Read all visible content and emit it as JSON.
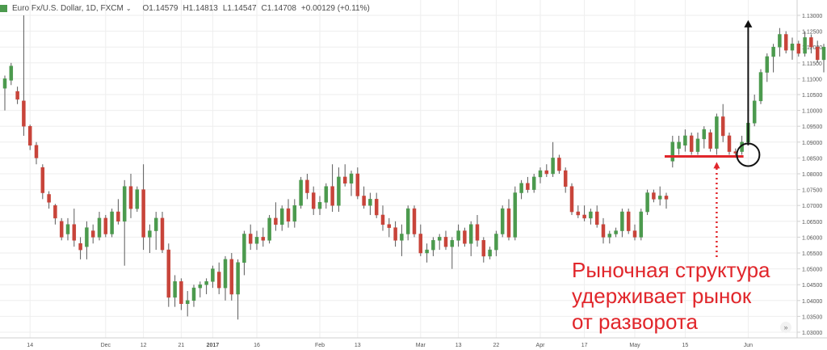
{
  "legend": {
    "symbol": "Euro Fx/U.S. Dollar, 1D, FXCM",
    "dropdown_icon": "chevron-down-icon",
    "open": "O1.14579",
    "high": "H1.14813",
    "low": "L1.14547",
    "close": "C1.14708",
    "change": "+0.00129 (+0.11%)"
  },
  "annotation": {
    "lines": [
      "Рыночная структура",
      "удерживает рынок",
      "от разворота"
    ]
  },
  "colors": {
    "up": "#4c9a4e",
    "down": "#c8443a",
    "wick": "#5a5a5a",
    "marker": "#e1262b",
    "arrow": "#111111",
    "axis_text": "#555555",
    "grid": "#eeeeee"
  },
  "chart_data": {
    "type": "candlestick",
    "y_axis": {
      "min": 1.03,
      "max": 1.13,
      "ticks": [
        "1.13000",
        "1.12500",
        "1.12000",
        "1.11500",
        "1.11000",
        "1.10500",
        "1.10000",
        "1.09500",
        "1.09000",
        "1.08500",
        "1.08000",
        "1.07500",
        "1.07000",
        "1.06500",
        "1.06000",
        "1.05500",
        "1.05000",
        "1.04500",
        "1.04000",
        "1.03500",
        "1.03000"
      ],
      "grid": true
    },
    "x_axis": {
      "ticks": [
        {
          "label": "14",
          "index": 4
        },
        {
          "label": "Dec",
          "index": 16
        },
        {
          "label": "12",
          "index": 22
        },
        {
          "label": "21",
          "index": 28
        },
        {
          "label": "2017",
          "index": 33
        },
        {
          "label": "16",
          "index": 40
        },
        {
          "label": "Feb",
          "index": 50
        },
        {
          "label": "13",
          "index": 56
        },
        {
          "label": "Mar",
          "index": 66
        },
        {
          "label": "13",
          "index": 72
        },
        {
          "label": "22",
          "index": 78
        },
        {
          "label": "Apr",
          "index": 85
        },
        {
          "label": "17",
          "index": 92
        },
        {
          "label": "May",
          "index": 100
        },
        {
          "label": "15",
          "index": 108
        },
        {
          "label": "Jun",
          "index": 118
        }
      ]
    },
    "candles": [
      {
        "o": 1.107,
        "h": 1.111,
        "l": 1.1,
        "c": 1.11
      },
      {
        "o": 1.1095,
        "h": 1.115,
        "l": 1.108,
        "c": 1.114
      },
      {
        "o": 1.106,
        "h": 1.1075,
        "l": 1.102,
        "c": 1.1035
      },
      {
        "o": 1.103,
        "h": 1.13,
        "l": 1.092,
        "c": 1.095
      },
      {
        "o": 1.095,
        "h": 1.0955,
        "l": 1.0875,
        "c": 1.089
      },
      {
        "o": 1.089,
        "h": 1.09,
        "l": 1.083,
        "c": 1.085
      },
      {
        "o": 1.082,
        "h": 1.083,
        "l": 1.072,
        "c": 1.074
      },
      {
        "o": 1.0735,
        "h": 1.0745,
        "l": 1.069,
        "c": 1.071
      },
      {
        "o": 1.07,
        "h": 1.0705,
        "l": 1.064,
        "c": 1.066
      },
      {
        "o": 1.065,
        "h": 1.066,
        "l": 1.059,
        "c": 1.06
      },
      {
        "o": 1.061,
        "h": 1.066,
        "l": 1.059,
        "c": 1.064
      },
      {
        "o": 1.064,
        "h": 1.069,
        "l": 1.057,
        "c": 1.059
      },
      {
        "o": 1.058,
        "h": 1.06,
        "l": 1.053,
        "c": 1.056
      },
      {
        "o": 1.057,
        "h": 1.065,
        "l": 1.053,
        "c": 1.063
      },
      {
        "o": 1.062,
        "h": 1.064,
        "l": 1.058,
        "c": 1.06
      },
      {
        "o": 1.06,
        "h": 1.068,
        "l": 1.059,
        "c": 1.066
      },
      {
        "o": 1.066,
        "h": 1.067,
        "l": 1.06,
        "c": 1.061
      },
      {
        "o": 1.061,
        "h": 1.069,
        "l": 1.06,
        "c": 1.068
      },
      {
        "o": 1.068,
        "h": 1.072,
        "l": 1.064,
        "c": 1.065
      },
      {
        "o": 1.065,
        "h": 1.078,
        "l": 1.051,
        "c": 1.076
      },
      {
        "o": 1.076,
        "h": 1.08,
        "l": 1.066,
        "c": 1.069
      },
      {
        "o": 1.069,
        "h": 1.076,
        "l": 1.068,
        "c": 1.075
      },
      {
        "o": 1.075,
        "h": 1.083,
        "l": 1.056,
        "c": 1.06
      },
      {
        "o": 1.06,
        "h": 1.064,
        "l": 1.055,
        "c": 1.062
      },
      {
        "o": 1.062,
        "h": 1.068,
        "l": 1.056,
        "c": 1.066
      },
      {
        "o": 1.066,
        "h": 1.068,
        "l": 1.055,
        "c": 1.056
      },
      {
        "o": 1.056,
        "h": 1.058,
        "l": 1.038,
        "c": 1.041
      },
      {
        "o": 1.041,
        "h": 1.048,
        "l": 1.038,
        "c": 1.046
      },
      {
        "o": 1.046,
        "h": 1.047,
        "l": 1.037,
        "c": 1.039
      },
      {
        "o": 1.039,
        "h": 1.043,
        "l": 1.035,
        "c": 1.04
      },
      {
        "o": 1.04,
        "h": 1.045,
        "l": 1.038,
        "c": 1.044
      },
      {
        "o": 1.044,
        "h": 1.046,
        "l": 1.041,
        "c": 1.045
      },
      {
        "o": 1.045,
        "h": 1.047,
        "l": 1.042,
        "c": 1.046
      },
      {
        "o": 1.046,
        "h": 1.051,
        "l": 1.044,
        "c": 1.05
      },
      {
        "o": 1.049,
        "h": 1.052,
        "l": 1.042,
        "c": 1.044
      },
      {
        "o": 1.044,
        "h": 1.054,
        "l": 1.04,
        "c": 1.053
      },
      {
        "o": 1.053,
        "h": 1.055,
        "l": 1.04,
        "c": 1.042
      },
      {
        "o": 1.042,
        "h": 1.053,
        "l": 1.034,
        "c": 1.052
      },
      {
        "o": 1.052,
        "h": 1.062,
        "l": 1.048,
        "c": 1.061
      },
      {
        "o": 1.061,
        "h": 1.064,
        "l": 1.056,
        "c": 1.058
      },
      {
        "o": 1.058,
        "h": 1.062,
        "l": 1.056,
        "c": 1.06
      },
      {
        "o": 1.06,
        "h": 1.063,
        "l": 1.057,
        "c": 1.059
      },
      {
        "o": 1.059,
        "h": 1.067,
        "l": 1.058,
        "c": 1.066
      },
      {
        "o": 1.066,
        "h": 1.071,
        "l": 1.062,
        "c": 1.064
      },
      {
        "o": 1.064,
        "h": 1.07,
        "l": 1.062,
        "c": 1.069
      },
      {
        "o": 1.069,
        "h": 1.072,
        "l": 1.063,
        "c": 1.065
      },
      {
        "o": 1.065,
        "h": 1.072,
        "l": 1.063,
        "c": 1.07
      },
      {
        "o": 1.07,
        "h": 1.079,
        "l": 1.069,
        "c": 1.078
      },
      {
        "o": 1.078,
        "h": 1.08,
        "l": 1.072,
        "c": 1.074
      },
      {
        "o": 1.074,
        "h": 1.076,
        "l": 1.067,
        "c": 1.069
      },
      {
        "o": 1.069,
        "h": 1.073,
        "l": 1.067,
        "c": 1.071
      },
      {
        "o": 1.071,
        "h": 1.077,
        "l": 1.069,
        "c": 1.076
      },
      {
        "o": 1.076,
        "h": 1.083,
        "l": 1.068,
        "c": 1.07
      },
      {
        "o": 1.07,
        "h": 1.082,
        "l": 1.068,
        "c": 1.079
      },
      {
        "o": 1.079,
        "h": 1.083,
        "l": 1.076,
        "c": 1.077
      },
      {
        "o": 1.077,
        "h": 1.081,
        "l": 1.073,
        "c": 1.08
      },
      {
        "o": 1.08,
        "h": 1.082,
        "l": 1.072,
        "c": 1.073
      },
      {
        "o": 1.073,
        "h": 1.076,
        "l": 1.069,
        "c": 1.07
      },
      {
        "o": 1.07,
        "h": 1.074,
        "l": 1.067,
        "c": 1.072
      },
      {
        "o": 1.072,
        "h": 1.074,
        "l": 1.066,
        "c": 1.067
      },
      {
        "o": 1.067,
        "h": 1.07,
        "l": 1.062,
        "c": 1.064
      },
      {
        "o": 1.064,
        "h": 1.066,
        "l": 1.06,
        "c": 1.063
      },
      {
        "o": 1.063,
        "h": 1.065,
        "l": 1.057,
        "c": 1.059
      },
      {
        "o": 1.059,
        "h": 1.064,
        "l": 1.054,
        "c": 1.061
      },
      {
        "o": 1.061,
        "h": 1.07,
        "l": 1.059,
        "c": 1.069
      },
      {
        "o": 1.069,
        "h": 1.07,
        "l": 1.06,
        "c": 1.061
      },
      {
        "o": 1.061,
        "h": 1.064,
        "l": 1.054,
        "c": 1.055
      },
      {
        "o": 1.055,
        "h": 1.058,
        "l": 1.052,
        "c": 1.056
      },
      {
        "o": 1.056,
        "h": 1.06,
        "l": 1.054,
        "c": 1.059
      },
      {
        "o": 1.059,
        "h": 1.061,
        "l": 1.056,
        "c": 1.06
      },
      {
        "o": 1.06,
        "h": 1.062,
        "l": 1.056,
        "c": 1.057
      },
      {
        "o": 1.057,
        "h": 1.06,
        "l": 1.05,
        "c": 1.059
      },
      {
        "o": 1.059,
        "h": 1.064,
        "l": 1.057,
        "c": 1.062
      },
      {
        "o": 1.062,
        "h": 1.063,
        "l": 1.057,
        "c": 1.058
      },
      {
        "o": 1.058,
        "h": 1.065,
        "l": 1.054,
        "c": 1.064
      },
      {
        "o": 1.064,
        "h": 1.067,
        "l": 1.057,
        "c": 1.059
      },
      {
        "o": 1.059,
        "h": 1.06,
        "l": 1.052,
        "c": 1.054
      },
      {
        "o": 1.054,
        "h": 1.057,
        "l": 1.053,
        "c": 1.056
      },
      {
        "o": 1.056,
        "h": 1.062,
        "l": 1.054,
        "c": 1.061
      },
      {
        "o": 1.061,
        "h": 1.07,
        "l": 1.06,
        "c": 1.069
      },
      {
        "o": 1.069,
        "h": 1.072,
        "l": 1.059,
        "c": 1.06
      },
      {
        "o": 1.06,
        "h": 1.076,
        "l": 1.059,
        "c": 1.074
      },
      {
        "o": 1.074,
        "h": 1.078,
        "l": 1.072,
        "c": 1.077
      },
      {
        "o": 1.077,
        "h": 1.079,
        "l": 1.074,
        "c": 1.075
      },
      {
        "o": 1.075,
        "h": 1.08,
        "l": 1.074,
        "c": 1.079
      },
      {
        "o": 1.079,
        "h": 1.082,
        "l": 1.077,
        "c": 1.081
      },
      {
        "o": 1.081,
        "h": 1.083,
        "l": 1.079,
        "c": 1.08
      },
      {
        "o": 1.08,
        "h": 1.09,
        "l": 1.079,
        "c": 1.085
      },
      {
        "o": 1.085,
        "h": 1.086,
        "l": 1.08,
        "c": 1.081
      },
      {
        "o": 1.081,
        "h": 1.082,
        "l": 1.074,
        "c": 1.076
      },
      {
        "o": 1.076,
        "h": 1.077,
        "l": 1.067,
        "c": 1.068
      },
      {
        "o": 1.068,
        "h": 1.07,
        "l": 1.066,
        "c": 1.067
      },
      {
        "o": 1.067,
        "h": 1.07,
        "l": 1.065,
        "c": 1.066
      },
      {
        "o": 1.066,
        "h": 1.069,
        "l": 1.064,
        "c": 1.068
      },
      {
        "o": 1.068,
        "h": 1.07,
        "l": 1.063,
        "c": 1.064
      },
      {
        "o": 1.064,
        "h": 1.066,
        "l": 1.058,
        "c": 1.06
      },
      {
        "o": 1.06,
        "h": 1.062,
        "l": 1.058,
        "c": 1.061
      },
      {
        "o": 1.061,
        "h": 1.063,
        "l": 1.06,
        "c": 1.062
      },
      {
        "o": 1.062,
        "h": 1.069,
        "l": 1.06,
        "c": 1.068
      },
      {
        "o": 1.068,
        "h": 1.069,
        "l": 1.061,
        "c": 1.062
      },
      {
        "o": 1.062,
        "h": 1.064,
        "l": 1.059,
        "c": 1.06
      },
      {
        "o": 1.06,
        "h": 1.069,
        "l": 1.059,
        "c": 1.068
      },
      {
        "o": 1.068,
        "h": 1.075,
        "l": 1.067,
        "c": 1.074
      },
      {
        "o": 1.074,
        "h": 1.075,
        "l": 1.071,
        "c": 1.072
      },
      {
        "o": 1.072,
        "h": 1.076,
        "l": 1.07,
        "c": 1.073
      },
      {
        "o": 1.073,
        "h": 1.074,
        "l": 1.069,
        "c": 1.072
      },
      {
        "o": 1.084,
        "h": 1.092,
        "l": 1.082,
        "c": 1.09
      },
      {
        "o": 1.088,
        "h": 1.092,
        "l": 1.086,
        "c": 1.09
      },
      {
        "o": 1.089,
        "h": 1.094,
        "l": 1.087,
        "c": 1.092
      },
      {
        "o": 1.092,
        "h": 1.093,
        "l": 1.086,
        "c": 1.087
      },
      {
        "o": 1.087,
        "h": 1.093,
        "l": 1.086,
        "c": 1.091
      },
      {
        "o": 1.091,
        "h": 1.095,
        "l": 1.088,
        "c": 1.094
      },
      {
        "o": 1.093,
        "h": 1.094,
        "l": 1.087,
        "c": 1.088
      },
      {
        "o": 1.088,
        "h": 1.099,
        "l": 1.086,
        "c": 1.098
      },
      {
        "o": 1.098,
        "h": 1.102,
        "l": 1.09,
        "c": 1.092
      },
      {
        "o": 1.092,
        "h": 1.093,
        "l": 1.086,
        "c": 1.087
      },
      {
        "o": 1.087,
        "h": 1.088,
        "l": 1.085,
        "c": 1.0865
      },
      {
        "o": 1.087,
        "h": 1.092,
        "l": 1.086,
        "c": 1.09
      },
      {
        "o": 1.09,
        "h": 1.098,
        "l": 1.089,
        "c": 1.096
      },
      {
        "o": 1.096,
        "h": 1.105,
        "l": 1.095,
        "c": 1.103
      },
      {
        "o": 1.103,
        "h": 1.113,
        "l": 1.102,
        "c": 1.112
      },
      {
        "o": 1.112,
        "h": 1.118,
        "l": 1.109,
        "c": 1.117
      },
      {
        "o": 1.117,
        "h": 1.121,
        "l": 1.112,
        "c": 1.12
      },
      {
        "o": 1.12,
        "h": 1.126,
        "l": 1.117,
        "c": 1.124
      },
      {
        "o": 1.124,
        "h": 1.125,
        "l": 1.118,
        "c": 1.119
      },
      {
        "o": 1.119,
        "h": 1.123,
        "l": 1.116,
        "c": 1.121
      },
      {
        "o": 1.121,
        "h": 1.122,
        "l": 1.117,
        "c": 1.118
      },
      {
        "o": 1.118,
        "h": 1.125,
        "l": 1.117,
        "c": 1.123
      },
      {
        "o": 1.123,
        "h": 1.124,
        "l": 1.118,
        "c": 1.12
      },
      {
        "o": 1.12,
        "h": 1.122,
        "l": 1.115,
        "c": 1.116
      },
      {
        "o": 1.116,
        "h": 1.121,
        "l": 1.112,
        "c": 1.12
      },
      {
        "o": 1.12,
        "h": 1.126,
        "l": 1.119,
        "c": 1.124
      },
      {
        "o": 1.124,
        "h": 1.128,
        "l": 1.12,
        "c": 1.122
      },
      {
        "o": 1.122,
        "h": 1.129,
        "l": 1.12,
        "c": 1.128
      },
      {
        "o": 1.128,
        "h": 1.129,
        "l": 1.123,
        "c": 1.125
      },
      {
        "o": 1.125,
        "h": 1.129,
        "l": 1.124,
        "c": 1.127
      },
      {
        "o": 1.127,
        "h": 1.128,
        "l": 1.12,
        "c": 1.122
      },
      {
        "o": 1.122,
        "h": 1.124,
        "l": 1.117,
        "c": 1.118
      }
    ],
    "overlays": {
      "support_level": 1.0855,
      "support_from_index": 105,
      "support_to_index": 117,
      "arrow_up_index": 118,
      "arrow_up_from": 1.089,
      "arrow_up_to": 1.1285,
      "circle_index": 118,
      "circle_value": 1.086,
      "dotted_arrow_index": 113,
      "dotted_arrow_to": 1.084
    }
  }
}
